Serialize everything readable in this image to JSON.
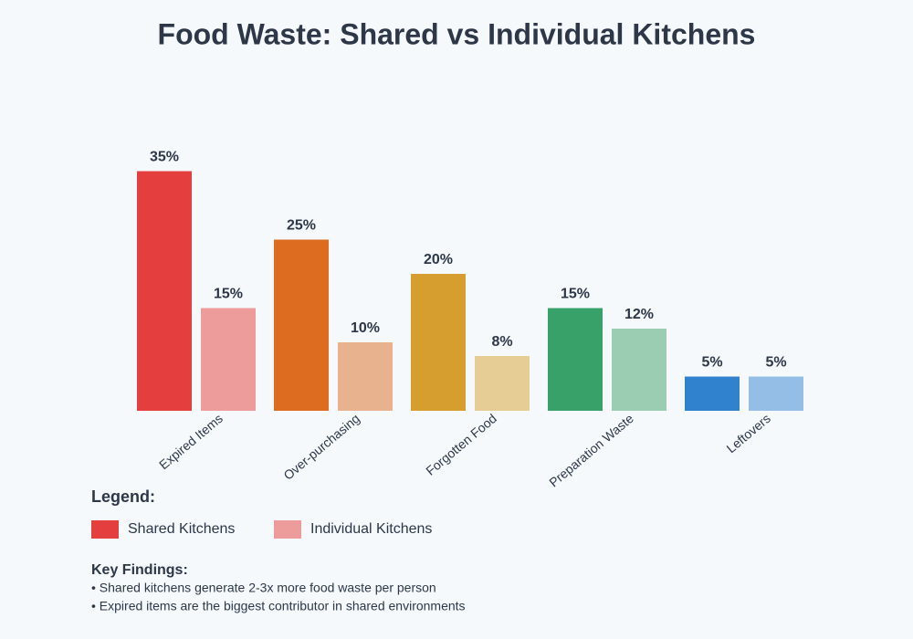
{
  "chart_data": {
    "type": "bar",
    "title": "Food Waste: Shared vs Individual Kitchens",
    "categories": [
      "Expired Items",
      "Over-purchasing",
      "Forgotten Food",
      "Preparation Waste",
      "Leftovers"
    ],
    "series": [
      {
        "name": "Shared Kitchens",
        "colors": [
          "#e53e3e",
          "#dd6b20",
          "#d69e2e",
          "#38a169",
          "#3182ce"
        ],
        "values": [
          35,
          25,
          20,
          15,
          5
        ],
        "value_labels": [
          "35%",
          "25%",
          "20%",
          "15%",
          "5%"
        ]
      },
      {
        "name": "Individual Kitchens",
        "colors": [
          "#ed9b9b",
          "#e8b28f",
          "#e6cd96",
          "#9acdb2",
          "#94bee6"
        ],
        "values": [
          15,
          10,
          8,
          12,
          5
        ],
        "value_labels": [
          "15%",
          "10%",
          "8%",
          "12%",
          "5%"
        ]
      }
    ],
    "legend_title": "Legend:",
    "key_findings": {
      "title": "Key Findings:",
      "items": [
        "• Shared kitchens generate 2-3x more food waste per person",
        "• Expired items are the biggest contributor in shared environments"
      ]
    }
  }
}
